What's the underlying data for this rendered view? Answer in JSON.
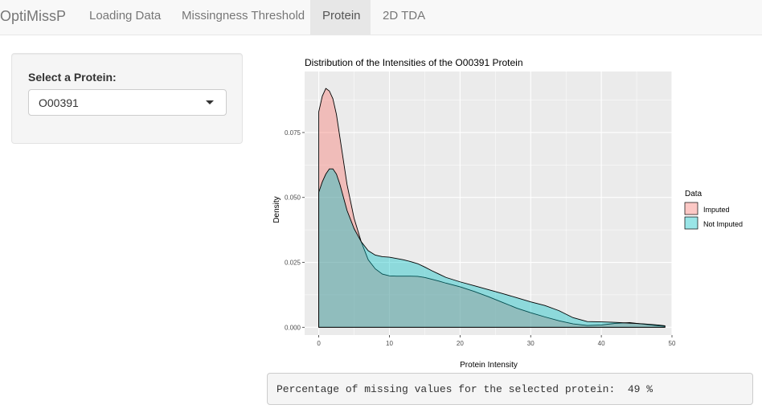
{
  "navbar": {
    "brand": "OptiMissP",
    "tabs": [
      {
        "label": "Loading Data",
        "active": false
      },
      {
        "label": "Missingness Threshold",
        "active": false
      },
      {
        "label": "Protein",
        "active": true
      },
      {
        "label": "2D TDA",
        "active": false
      }
    ]
  },
  "sidebar": {
    "select_label": "Select a Protein:",
    "selected_value": "O00391"
  },
  "output": {
    "missing_text": "Percentage of missing values for the selected protein:  49 %"
  },
  "chart_data": {
    "type": "area",
    "title": "Distribution of the Intensities of the O00391 Protein",
    "xlabel": "Protein Intensity",
    "ylabel": "Density",
    "xlim": [
      -2,
      50
    ],
    "ylim": [
      -0.003,
      0.0985
    ],
    "x_ticks": [
      0,
      10,
      20,
      30,
      40,
      50
    ],
    "y_ticks": [
      0.0,
      0.025,
      0.05,
      0.075
    ],
    "y_tick_labels": [
      "0.000",
      "0.025",
      "0.050",
      "0.075"
    ],
    "legend": {
      "title": "Data",
      "placement": "right"
    },
    "colors": {
      "Imputed": "#F8766D",
      "Not Imputed": "#00BFC4",
      "panel": "#EBEBEB",
      "grid": "#FFFFFF"
    },
    "series": [
      {
        "name": "Imputed",
        "x": [
          0,
          0.5,
          1,
          1.5,
          2,
          2.5,
          3,
          3.5,
          4,
          5,
          6,
          7,
          8,
          9,
          10,
          11,
          12,
          13,
          14,
          15,
          16,
          17,
          18,
          20,
          22,
          24,
          26,
          28,
          30,
          32,
          34,
          36,
          38,
          40,
          42,
          44,
          46,
          48,
          49
        ],
        "y": [
          0.083,
          0.089,
          0.092,
          0.091,
          0.088,
          0.082,
          0.073,
          0.064,
          0.055,
          0.042,
          0.033,
          0.026,
          0.0225,
          0.0205,
          0.0198,
          0.0197,
          0.0197,
          0.0197,
          0.0196,
          0.0192,
          0.0185,
          0.0178,
          0.017,
          0.0156,
          0.0138,
          0.0118,
          0.0096,
          0.0074,
          0.0056,
          0.004,
          0.0025,
          0.0013,
          0.0007,
          0.0009,
          0.0015,
          0.0018,
          0.0012,
          0.0006,
          0.0004
        ]
      },
      {
        "name": "Not Imputed",
        "x": [
          0,
          0.5,
          1,
          1.5,
          2,
          2.5,
          3,
          3.5,
          4,
          5,
          6,
          7,
          8,
          9,
          10,
          11,
          12,
          13,
          14,
          15,
          16,
          17,
          18,
          20,
          22,
          24,
          26,
          28,
          30,
          32,
          34,
          36,
          38,
          40,
          42,
          44,
          46,
          48,
          49
        ],
        "y": [
          0.052,
          0.056,
          0.059,
          0.061,
          0.061,
          0.059,
          0.055,
          0.05,
          0.045,
          0.038,
          0.033,
          0.0295,
          0.0278,
          0.0272,
          0.027,
          0.0265,
          0.026,
          0.0253,
          0.0245,
          0.0232,
          0.0218,
          0.0205,
          0.0192,
          0.0175,
          0.016,
          0.0145,
          0.013,
          0.0114,
          0.0098,
          0.0084,
          0.0064,
          0.0037,
          0.0022,
          0.0021,
          0.0019,
          0.0016,
          0.0013,
          0.0009,
          0.0006
        ]
      }
    ]
  }
}
